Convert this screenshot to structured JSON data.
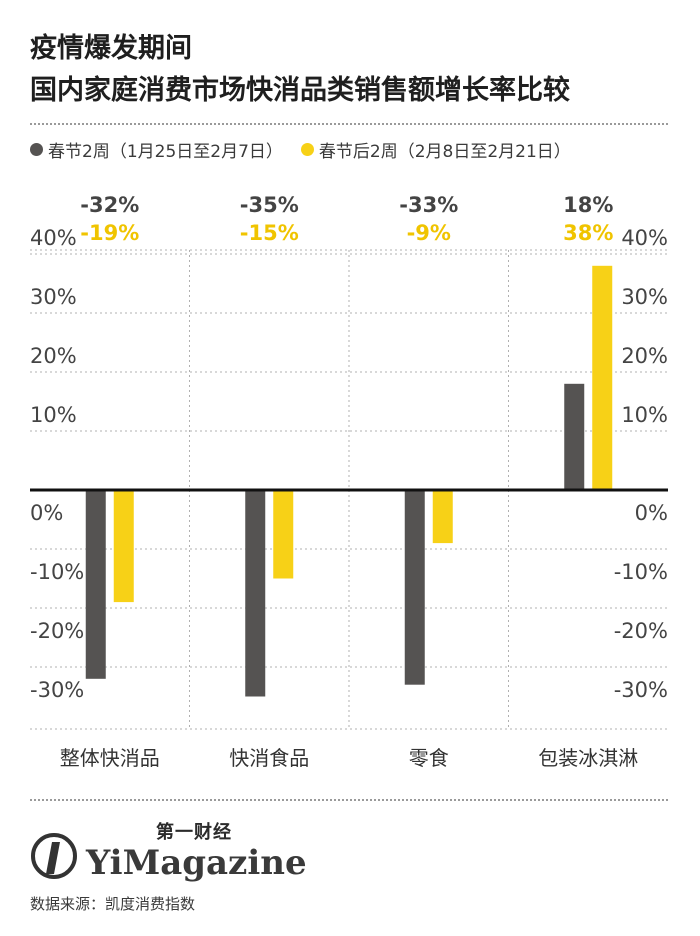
{
  "title_lines": [
    "疫情爆发期间",
    "国内家庭消费市场快消品类销售额增长率比较"
  ],
  "legend": [
    {
      "label": "春节2周（1月25日至2月7日）",
      "color": "#555352"
    },
    {
      "label": "春节后2周（2月8日至2月21日）",
      "color": "#f7d117"
    }
  ],
  "chart_data": {
    "type": "bar",
    "categories": [
      "整体快消品",
      "快消食品",
      "零食",
      "包装冰淇淋"
    ],
    "series": [
      {
        "name": "春节2周（1月25日至2月7日）",
        "values": [
          -32,
          -35,
          -33,
          18
        ],
        "color": "#555352"
      },
      {
        "name": "春节后2周（2月8日至2月21日）",
        "values": [
          -19,
          -15,
          -9,
          38
        ],
        "color": "#f7d117"
      }
    ],
    "data_labels": [
      [
        "-32%",
        "-35%",
        "-33%",
        "18%"
      ],
      [
        "-19%",
        "-15%",
        "-9%",
        "38%"
      ]
    ],
    "y_ticks": [
      40,
      30,
      20,
      10,
      0,
      -10,
      -20,
      -30
    ],
    "y_tick_labels": [
      "40%",
      "30%",
      "20%",
      "10%",
      "0%",
      "-10%",
      "-20%",
      "-30%"
    ],
    "ylim": [
      -40,
      45
    ],
    "grid": true,
    "legend_position": "top-left"
  },
  "logo": {
    "cn": "第一财经",
    "en": "YiMagazine"
  },
  "source": "数据来源：凯度消费指数"
}
